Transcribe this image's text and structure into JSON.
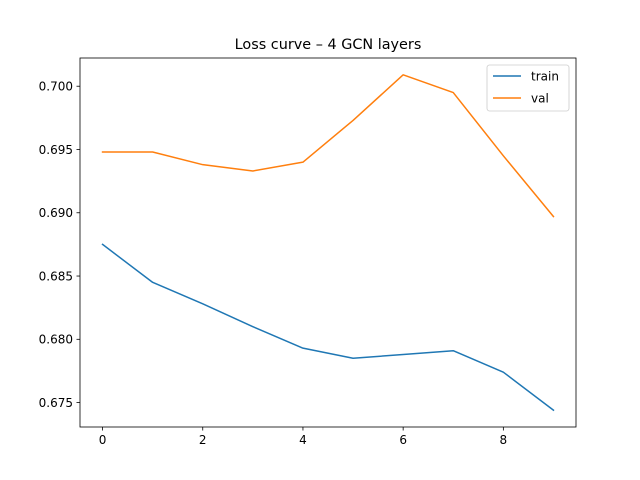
{
  "chart_data": {
    "type": "line",
    "title": "Loss curve – 4 GCN layers",
    "xlabel": "",
    "ylabel": "",
    "x": [
      0,
      1,
      2,
      3,
      4,
      5,
      6,
      7,
      8,
      9
    ],
    "series": [
      {
        "name": "train",
        "color": "#1f77b4",
        "values": [
          0.6875,
          0.6845,
          0.6828,
          0.681,
          0.6793,
          0.6785,
          0.6788,
          0.6791,
          0.6774,
          0.6744
        ]
      },
      {
        "name": "val",
        "color": "#ff7f0e",
        "values": [
          0.6948,
          0.6948,
          0.6938,
          0.6933,
          0.694,
          0.6973,
          0.7009,
          0.6995,
          0.6945,
          0.6897
        ]
      }
    ],
    "xlim": [
      -0.45,
      9.45
    ],
    "ylim": [
      0.67307,
      0.70223
    ],
    "xticks": [
      0,
      2,
      4,
      6,
      8
    ],
    "xtick_labels": [
      "0",
      "2",
      "4",
      "6",
      "8"
    ],
    "yticks": [
      0.675,
      0.68,
      0.685,
      0.69,
      0.695,
      0.7
    ],
    "ytick_labels": [
      "0.675",
      "0.680",
      "0.685",
      "0.690",
      "0.695",
      "0.700"
    ],
    "grid": false,
    "legend_position": "top-right"
  }
}
